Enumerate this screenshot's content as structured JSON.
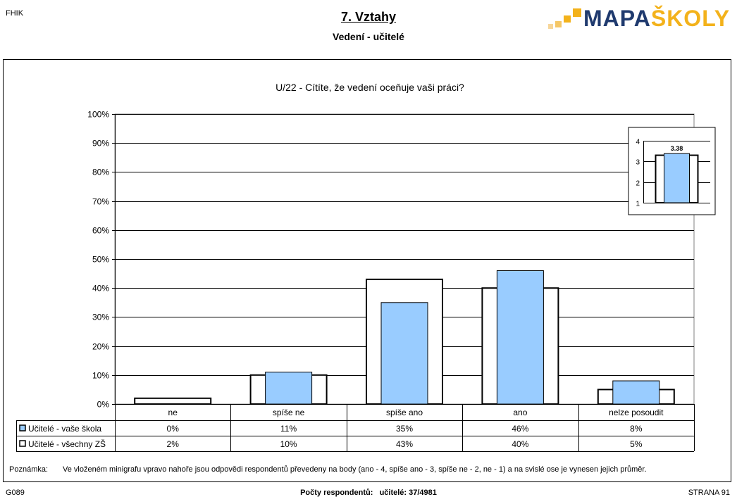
{
  "header": {
    "corner_label": "FHIK",
    "title": "7. Vztahy",
    "subtitle": "Vedení - učitelé",
    "logo_part1": "MAPA",
    "logo_part2": "ŠKOLY"
  },
  "colors": {
    "school_fill": "#99ccff",
    "all_fill": "#ffffff",
    "logo_blue": "#1f3a6e",
    "logo_orange": "#f3b21b"
  },
  "chart_data": {
    "type": "bar",
    "title": "U/22 - Cítíte, že vedení oceňuje vaši práci?",
    "categories": [
      "ne",
      "spíše ne",
      "spíše ano",
      "ano",
      "nelze posoudit"
    ],
    "series": [
      {
        "name": "Učitelé - vaše škola",
        "values": [
          0,
          11,
          35,
          46,
          8
        ],
        "labels": [
          "0%",
          "11%",
          "35%",
          "46%",
          "8%"
        ]
      },
      {
        "name": "Učitelé - všechny ZŠ",
        "values": [
          2,
          10,
          43,
          40,
          5
        ],
        "labels": [
          "2%",
          "10%",
          "43%",
          "40%",
          "5%"
        ]
      }
    ],
    "ylim": [
      0,
      100
    ],
    "y_ticks": [
      "0%",
      "10%",
      "20%",
      "30%",
      "40%",
      "50%",
      "60%",
      "70%",
      "80%",
      "90%",
      "100%"
    ],
    "grid": true,
    "legend": "data-table",
    "inset": {
      "type": "bar",
      "ylim": [
        1,
        4
      ],
      "y_ticks": [
        "1",
        "2",
        "3",
        "4"
      ],
      "school_value": 3.38,
      "school_label": "3.38",
      "all_value": 3.3
    }
  },
  "note": {
    "label": "Poznámka:",
    "text": "Ve vloženém minigrafu vpravo nahoře jsou odpovědi respondentů převedeny na body (ano - 4, spíše ano - 3, spíše ne - 2, ne - 1) a na svislé ose je vynesen jejich průměr."
  },
  "footer": {
    "left": "G089",
    "center_label": "Počty respondentů:",
    "center_value": "učitelé: 37/4981",
    "right": "STRANA 91"
  }
}
